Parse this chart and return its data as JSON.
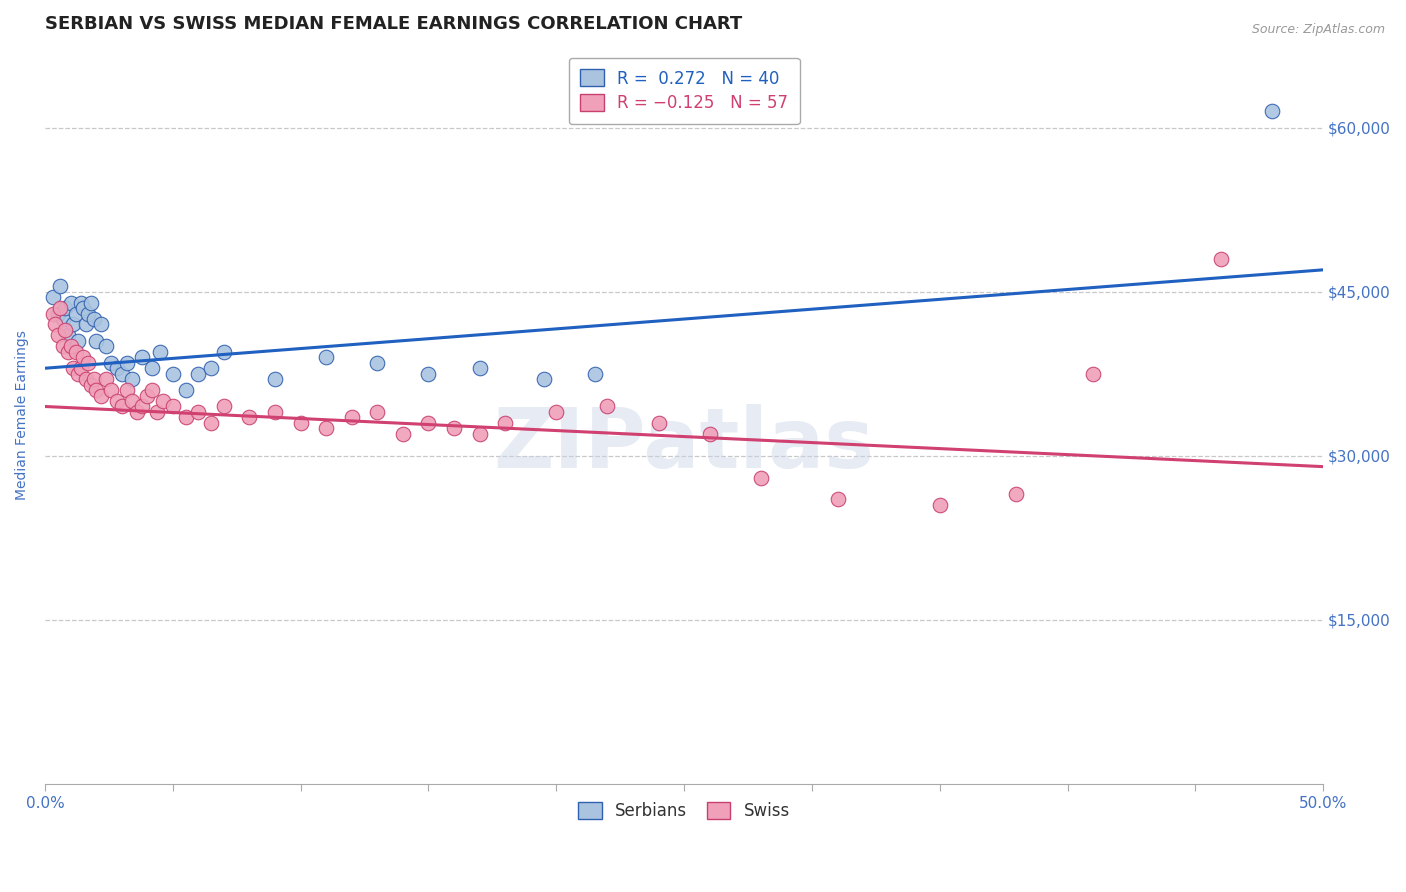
{
  "title": "SERBIAN VS SWISS MEDIAN FEMALE EARNINGS CORRELATION CHART",
  "source": "Source: ZipAtlas.com",
  "ylabel": "Median Female Earnings",
  "xlim": [
    0.0,
    0.5
  ],
  "ylim": [
    0,
    67500
  ],
  "yticks": [
    15000,
    30000,
    45000,
    60000
  ],
  "ytick_labels": [
    "$15,000",
    "$30,000",
    "$45,000",
    "$60,000"
  ],
  "background_color": "#ffffff",
  "grid_color": "#c8c8c8",
  "serbians": {
    "color": "#aac4e0",
    "edge_color": "#3060b0",
    "line_color": "#2060c0",
    "R": 0.272,
    "N": 40,
    "x": [
      0.003,
      0.005,
      0.006,
      0.007,
      0.008,
      0.009,
      0.01,
      0.011,
      0.012,
      0.013,
      0.014,
      0.015,
      0.016,
      0.017,
      0.018,
      0.019,
      0.02,
      0.022,
      0.024,
      0.026,
      0.028,
      0.03,
      0.032,
      0.034,
      0.038,
      0.042,
      0.045,
      0.05,
      0.055,
      0.06,
      0.065,
      0.07,
      0.09,
      0.11,
      0.13,
      0.15,
      0.17,
      0.195,
      0.215,
      0.48
    ],
    "y": [
      44500,
      43000,
      45500,
      42500,
      43500,
      41000,
      44000,
      42000,
      43000,
      40500,
      44000,
      43500,
      42000,
      43000,
      44000,
      42500,
      40500,
      42000,
      40000,
      38500,
      38000,
      37500,
      38500,
      37000,
      39000,
      38000,
      39500,
      37500,
      36000,
      37500,
      38000,
      39500,
      37000,
      39000,
      38500,
      37500,
      38000,
      37000,
      37500,
      61500
    ]
  },
  "swiss": {
    "color": "#f0a0b8",
    "edge_color": "#c84070",
    "line_color": "#d04070",
    "R": -0.125,
    "N": 57,
    "x": [
      0.003,
      0.004,
      0.005,
      0.006,
      0.007,
      0.008,
      0.009,
      0.01,
      0.011,
      0.012,
      0.013,
      0.014,
      0.015,
      0.016,
      0.017,
      0.018,
      0.019,
      0.02,
      0.022,
      0.024,
      0.026,
      0.028,
      0.03,
      0.032,
      0.034,
      0.036,
      0.038,
      0.04,
      0.042,
      0.044,
      0.046,
      0.05,
      0.055,
      0.06,
      0.065,
      0.07,
      0.08,
      0.09,
      0.1,
      0.11,
      0.12,
      0.13,
      0.14,
      0.15,
      0.16,
      0.17,
      0.18,
      0.2,
      0.22,
      0.24,
      0.26,
      0.28,
      0.31,
      0.35,
      0.38,
      0.41,
      0.46
    ],
    "y": [
      43000,
      42000,
      41000,
      43500,
      40000,
      41500,
      39500,
      40000,
      38000,
      39500,
      37500,
      38000,
      39000,
      37000,
      38500,
      36500,
      37000,
      36000,
      35500,
      37000,
      36000,
      35000,
      34500,
      36000,
      35000,
      34000,
      34500,
      35500,
      36000,
      34000,
      35000,
      34500,
      33500,
      34000,
      33000,
      34500,
      33500,
      34000,
      33000,
      32500,
      33500,
      34000,
      32000,
      33000,
      32500,
      32000,
      33000,
      34000,
      34500,
      33000,
      32000,
      28000,
      26000,
      25500,
      26500,
      37500,
      48000
    ]
  },
  "legend_upper": {
    "serbian_text": "R =  0.272   N = 40",
    "swiss_text": "R = −0.125   N = 57"
  },
  "legend_bottom": {
    "serbian_label": "Serbians",
    "swiss_label": "Swiss"
  },
  "watermark": "ZIPatlas",
  "title_color": "#222222",
  "axis_color": "#4472c4",
  "title_fontsize": 13,
  "label_fontsize": 10,
  "tick_fontsize": 11,
  "legend_fontsize": 12
}
